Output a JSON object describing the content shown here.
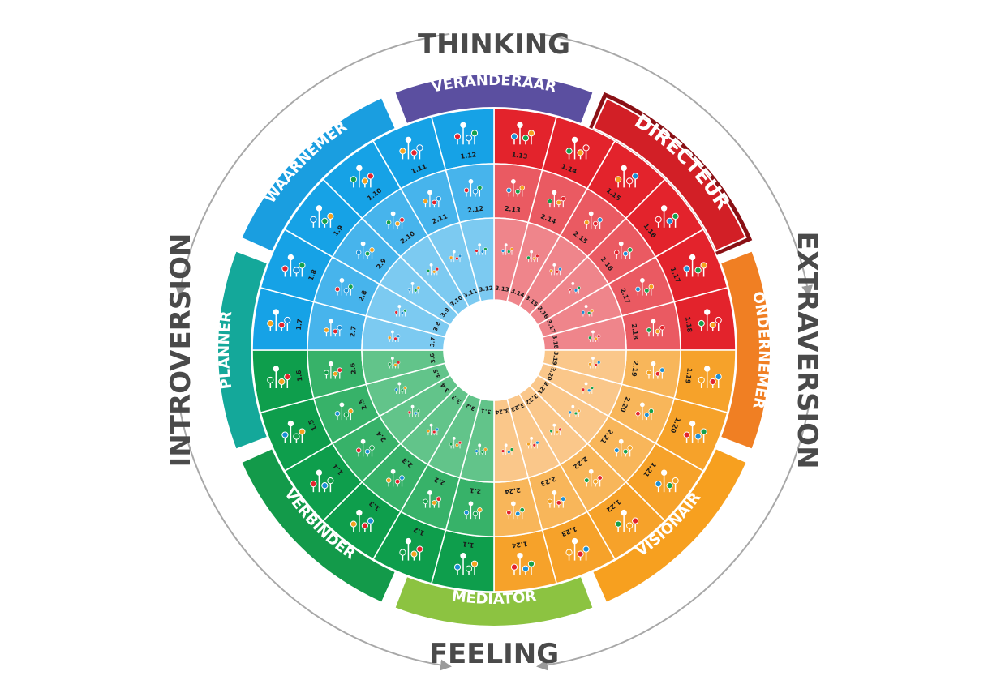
{
  "axes": {
    "top": "THINKING",
    "bottom": "FEELING",
    "left": "INTROVERSION",
    "right": "EXTRAVERSION"
  },
  "segments": [
    {
      "label": "VERANDERAAR",
      "color": "#5b4fa0",
      "highlight": false
    },
    {
      "label": "DIRECTEUR",
      "color": "#d21f26",
      "highlight": true
    },
    {
      "label": "ONDERNEMER",
      "color": "#f07f23",
      "highlight": false
    },
    {
      "label": "VISIONAIR",
      "color": "#f7a01f",
      "highlight": false
    },
    {
      "label": "MEDIATOR",
      "color": "#8cc341",
      "highlight": false
    },
    {
      "label": "VERBINDER",
      "color": "#139a4a",
      "highlight": false
    },
    {
      "label": "PLANNER",
      "color": "#14a89a",
      "highlight": false
    },
    {
      "label": "WAARNEMER",
      "color": "#1a9ee0",
      "highlight": false
    }
  ],
  "quadrant_colors": {
    "blue": [
      "#16a2e6",
      "#47b4ec",
      "#7ccaf1"
    ],
    "red": [
      "#e3232c",
      "#ea5a62",
      "#ef858b"
    ],
    "orange": [
      "#f6a22a",
      "#f8b65a",
      "#fac78a"
    ],
    "green": [
      "#0e9e4c",
      "#37b269",
      "#62c48a"
    ]
  },
  "marker_colors": [
    "#1a8fd6",
    "#14a04a",
    "#f4a21f",
    "#e3232c"
  ],
  "rings": [
    {
      "prefix": "1.",
      "count": 24
    },
    {
      "prefix": "2.",
      "count": 24
    },
    {
      "prefix": "3.",
      "count": 24
    }
  ]
}
